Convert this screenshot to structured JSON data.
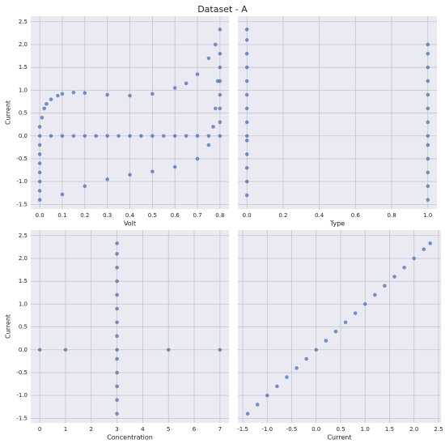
{
  "title": "Dataset - A",
  "chart_data": [
    {
      "type": "scatter",
      "xlabel": "Volt",
      "ylabel": "Current",
      "color": "#4c72b0",
      "grid": true,
      "ytick_labels": true,
      "xlim": [
        -0.04,
        0.84
      ],
      "ylim": [
        -1.6,
        2.62
      ],
      "xticks": [
        {
          "value": 0,
          "label": "0.0"
        },
        0.1,
        0.2,
        0.3,
        0.4,
        0.5,
        0.6,
        0.7,
        0.8
      ],
      "yticks": [
        -1.5,
        {
          "value": -1,
          "label": "-1.0"
        },
        -0.5,
        {
          "value": 0,
          "label": "0.0"
        },
        0.5,
        {
          "value": 1,
          "label": "1.0"
        },
        1.5,
        {
          "value": 2,
          "label": "2.0"
        },
        2.5
      ],
      "x": [
        0,
        0.05,
        0.1,
        0.15,
        0.2,
        0.25,
        0.3,
        0.35,
        0.4,
        0.45,
        0.5,
        0.55,
        0.6,
        0.65,
        0.7,
        0.75,
        0.8,
        0,
        0,
        0,
        0,
        0,
        0,
        0,
        0.01,
        0.02,
        0.03,
        0.05,
        0.08,
        0.1,
        0.15,
        0.2,
        0.3,
        0.4,
        0.5,
        0.6,
        0.65,
        0.7,
        0.75,
        0.78,
        0.8,
        0,
        0.1,
        0.2,
        0.3,
        0.4,
        0.5,
        0.6,
        0.7,
        0.75,
        0.77,
        0.78,
        0.79,
        0.8,
        0.8,
        0.8,
        0.8,
        0.8,
        0.8
      ],
      "values": [
        0,
        0,
        0,
        0,
        0,
        0,
        0,
        0,
        0,
        0,
        0,
        0,
        0,
        0,
        0,
        0,
        0,
        -1.2,
        -1.0,
        -0.8,
        -0.6,
        -0.4,
        -0.2,
        0.2,
        0.4,
        0.6,
        0.7,
        0.8,
        0.88,
        0.92,
        0.95,
        0.94,
        0.9,
        0.88,
        0.92,
        1.05,
        1.15,
        1.35,
        1.7,
        2.0,
        2.33,
        -1.4,
        -1.28,
        -1.1,
        -0.95,
        -0.85,
        -0.78,
        -0.68,
        -0.5,
        -0.2,
        0.2,
        0.6,
        1.2,
        1.8,
        0.3,
        0.6,
        0.9,
        1.2,
        1.5
      ]
    },
    {
      "type": "scatter",
      "xlabel": "Type",
      "color": "#4c72b0",
      "grid": true,
      "ytick_labels": false,
      "xlim": [
        -0.05,
        1.05
      ],
      "ylim": [
        -1.6,
        2.62
      ],
      "xticks": [
        {
          "value": 0,
          "label": "0.0"
        },
        0.2,
        0.4,
        0.6,
        0.8,
        {
          "value": 1,
          "label": "1.0"
        }
      ],
      "yticks": [
        -1.5,
        -1,
        -0.5,
        0,
        0.5,
        1,
        1.5,
        2,
        2.5
      ],
      "x": [
        0,
        0,
        0,
        0,
        0,
        0,
        0,
        0,
        0,
        0,
        0,
        0,
        0,
        0,
        1,
        1,
        1,
        1,
        1,
        1,
        1,
        1,
        1,
        1,
        1,
        1,
        1
      ],
      "values": [
        -1.3,
        -1.0,
        -0.7,
        -0.4,
        -0.1,
        0,
        0.3,
        0.6,
        0.9,
        1.2,
        1.5,
        1.8,
        2.1,
        2.33,
        -1.4,
        -1.1,
        -0.8,
        -0.5,
        -0.2,
        0,
        0.3,
        0.6,
        0.9,
        1.2,
        1.5,
        1.8,
        2.0
      ]
    },
    {
      "type": "scatter",
      "xlabel": "Concentration",
      "ylabel": "Current",
      "color": "#4c72b0",
      "grid": true,
      "ytick_labels": true,
      "xlim": [
        -0.35,
        7.35
      ],
      "ylim": [
        -1.6,
        2.62
      ],
      "xticks": [
        0,
        1,
        2,
        3,
        4,
        5,
        6,
        7
      ],
      "yticks": [
        -1.5,
        {
          "value": -1,
          "label": "-1.0"
        },
        -0.5,
        {
          "value": 0,
          "label": "0.0"
        },
        0.5,
        {
          "value": 1,
          "label": "1.0"
        },
        1.5,
        {
          "value": 2,
          "label": "2.0"
        },
        2.5
      ],
      "x": [
        0,
        1,
        5,
        7,
        3,
        3,
        3,
        3,
        3,
        3,
        3,
        3,
        3,
        3,
        3,
        3,
        3,
        3
      ],
      "values": [
        0,
        0,
        0,
        0,
        -1.4,
        -1.1,
        -0.8,
        -0.5,
        -0.2,
        0,
        0.3,
        0.6,
        0.9,
        1.2,
        1.5,
        1.8,
        2.1,
        2.33
      ]
    },
    {
      "type": "scatter",
      "xlabel": "Current",
      "color": "#4c72b0",
      "grid": true,
      "ytick_labels": false,
      "xlim": [
        -1.6,
        2.55
      ],
      "ylim": [
        -1.6,
        2.62
      ],
      "xticks": [
        -1.5,
        {
          "value": -1,
          "label": "-1.0"
        },
        -0.5,
        {
          "value": 0,
          "label": "0.0"
        },
        0.5,
        {
          "value": 1,
          "label": "1.0"
        },
        1.5,
        {
          "value": 2,
          "label": "2.0"
        },
        2.5
      ],
      "yticks": [
        -1.5,
        -1,
        -0.5,
        0,
        0.5,
        1,
        1.5,
        2,
        2.5
      ],
      "x": [
        -1.4,
        -1.2,
        -1.0,
        -0.8,
        -0.6,
        -0.4,
        -0.2,
        0,
        0.2,
        0.4,
        0.6,
        0.8,
        1.0,
        1.2,
        1.4,
        1.6,
        1.8,
        2.0,
        2.2,
        2.33
      ],
      "values": [
        -1.4,
        -1.2,
        -1.0,
        -0.8,
        -0.6,
        -0.4,
        -0.2,
        0,
        0.2,
        0.4,
        0.6,
        0.8,
        1.0,
        1.2,
        1.4,
        1.6,
        1.8,
        2.0,
        2.2,
        2.33
      ]
    }
  ]
}
